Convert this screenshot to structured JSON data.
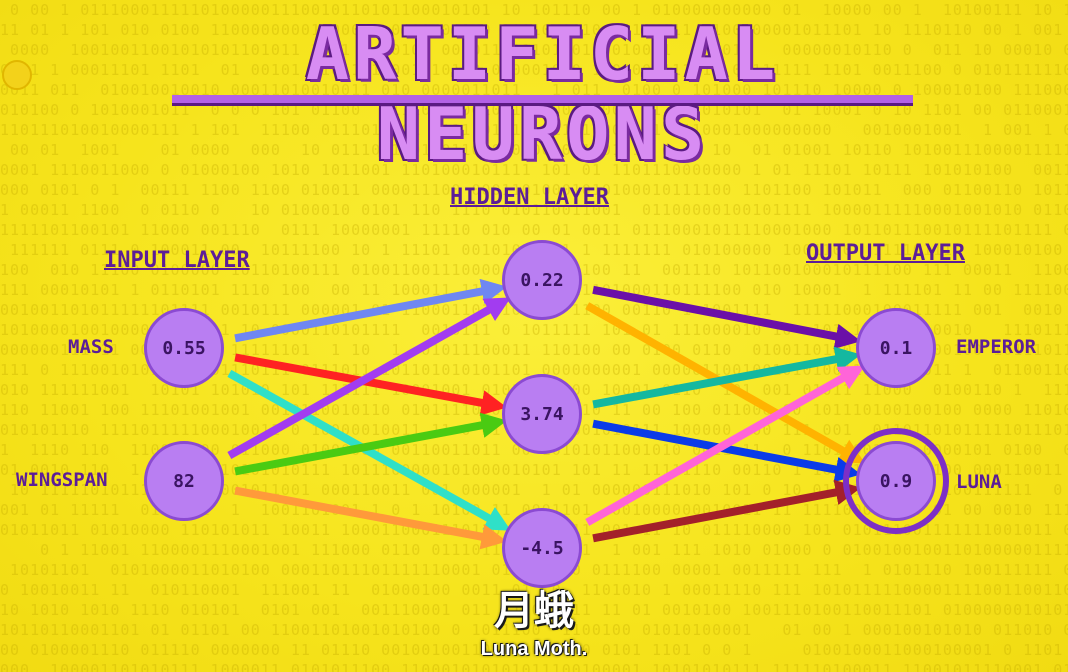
{
  "title": "ARTIFICIAL NEURONS",
  "layers": {
    "input": "INPUT LAYER",
    "hidden": "HIDDEN LAYER",
    "output": "OUTPUT LAYER"
  },
  "inputs": [
    {
      "label": "MASS",
      "value": "0.55"
    },
    {
      "label": "WINGSPAN",
      "value": "82"
    }
  ],
  "hidden": [
    {
      "value": "0.22"
    },
    {
      "value": "3.74"
    },
    {
      "value": "-4.5"
    }
  ],
  "outputs": [
    {
      "label": "EMPEROR",
      "value": "0.1"
    },
    {
      "label": "LUNA",
      "value": "0.9",
      "highlighted": true
    }
  ],
  "edges": [
    {
      "from": "input-0",
      "to": "hidden-0",
      "color": "#6f87f2"
    },
    {
      "from": "input-0",
      "to": "hidden-1",
      "color": "#ff2222"
    },
    {
      "from": "input-0",
      "to": "hidden-2",
      "color": "#2fe0c8"
    },
    {
      "from": "input-1",
      "to": "hidden-0",
      "color": "#a23cf0"
    },
    {
      "from": "input-1",
      "to": "hidden-1",
      "color": "#4acb12"
    },
    {
      "from": "input-1",
      "to": "hidden-2",
      "color": "#ff9a3a"
    },
    {
      "from": "hidden-0",
      "to": "output-0",
      "color": "#6b0fa8"
    },
    {
      "from": "hidden-0",
      "to": "output-1",
      "color": "#ffb300"
    },
    {
      "from": "hidden-1",
      "to": "output-0",
      "color": "#14b8a0"
    },
    {
      "from": "hidden-1",
      "to": "output-1",
      "color": "#0a3be8"
    },
    {
      "from": "hidden-2",
      "to": "output-0",
      "color": "#ff64d8"
    },
    {
      "from": "hidden-2",
      "to": "output-1",
      "color": "#a3202a"
    }
  ],
  "subtitles": {
    "zh": "月蛾",
    "en": "Luna Moth."
  }
}
